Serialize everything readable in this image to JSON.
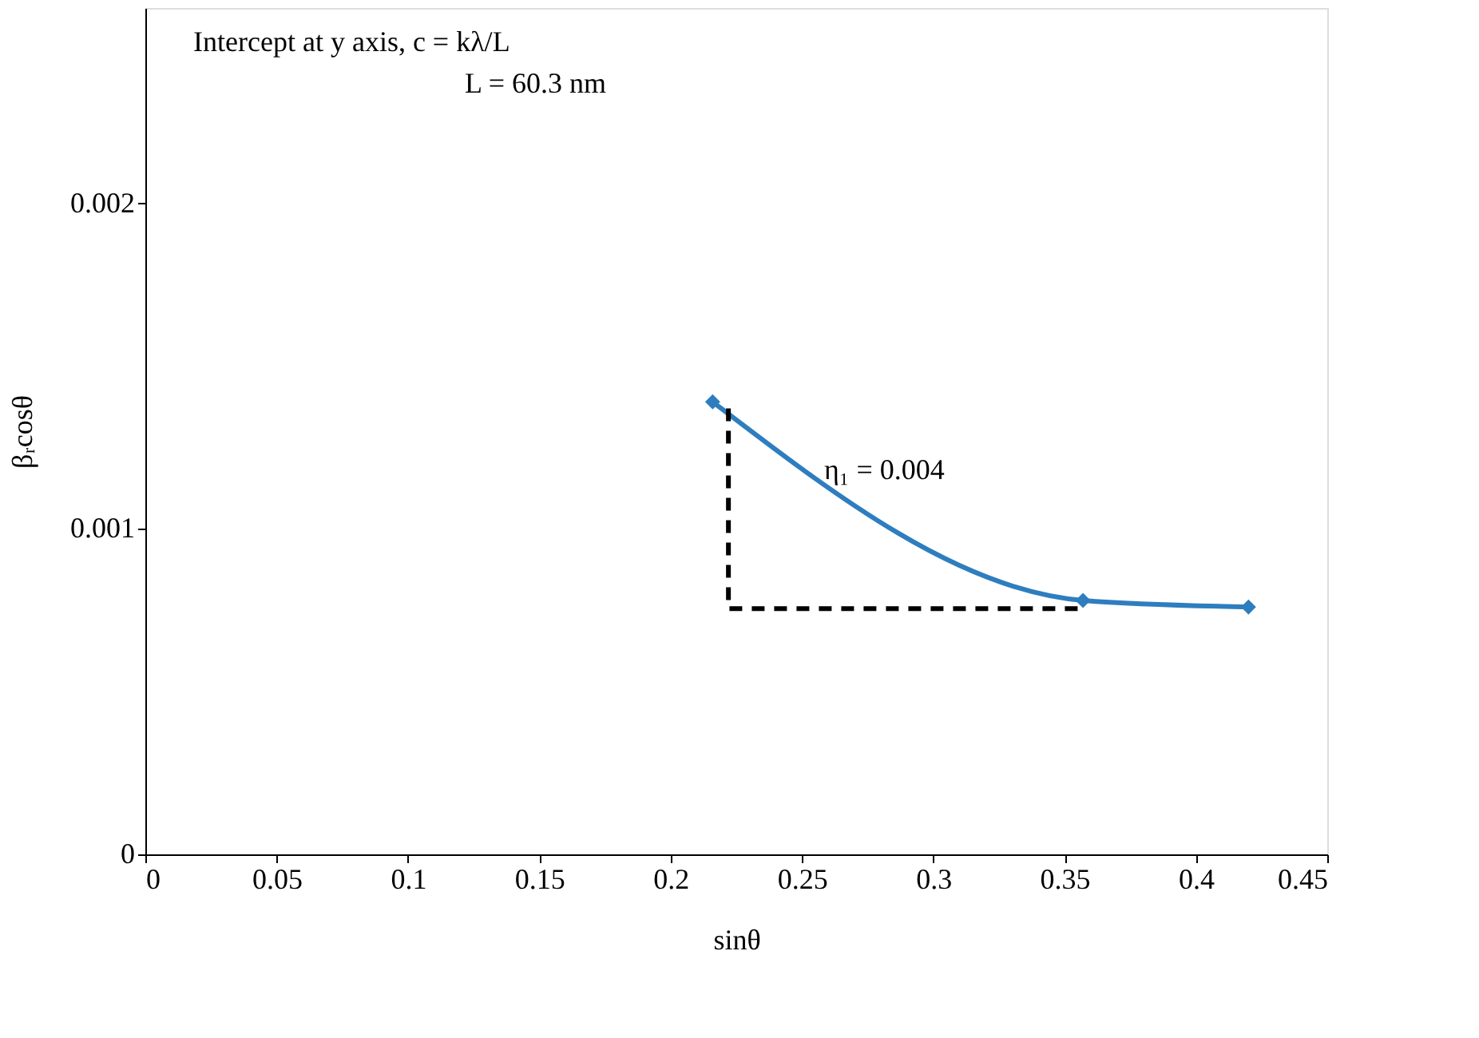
{
  "chart_data": {
    "type": "line",
    "xlabel": "sinθ",
    "ylabel": "βᵣcosθ",
    "xlim": [
      0,
      0.45
    ],
    "xticks": [
      0,
      0.05,
      0.1,
      0.15,
      0.2,
      0.25,
      0.3,
      0.35,
      0.4,
      0.45
    ],
    "ylim": [
      0,
      0.0026
    ],
    "yticks": [
      0,
      0.001,
      0.002
    ],
    "grid": false,
    "series": [
      {
        "color": "#2e7ebf",
        "marker": "diamond",
        "line_style": "solid",
        "x": [
          0.216,
          0.357,
          0.42
        ],
        "values": [
          0.00139,
          0.00078,
          0.00076
        ]
      },
      {
        "color": "#000000",
        "marker": "none",
        "line_style": "dashed",
        "x": [
          0.222,
          0.222,
          0.355
        ],
        "values": [
          0.00137,
          0.000755,
          0.000755
        ]
      }
    ],
    "annotations": [
      "Intercept at y axis, c = kλ/L",
      "L = 60.3 nm",
      "η₁ = 0.004"
    ]
  }
}
